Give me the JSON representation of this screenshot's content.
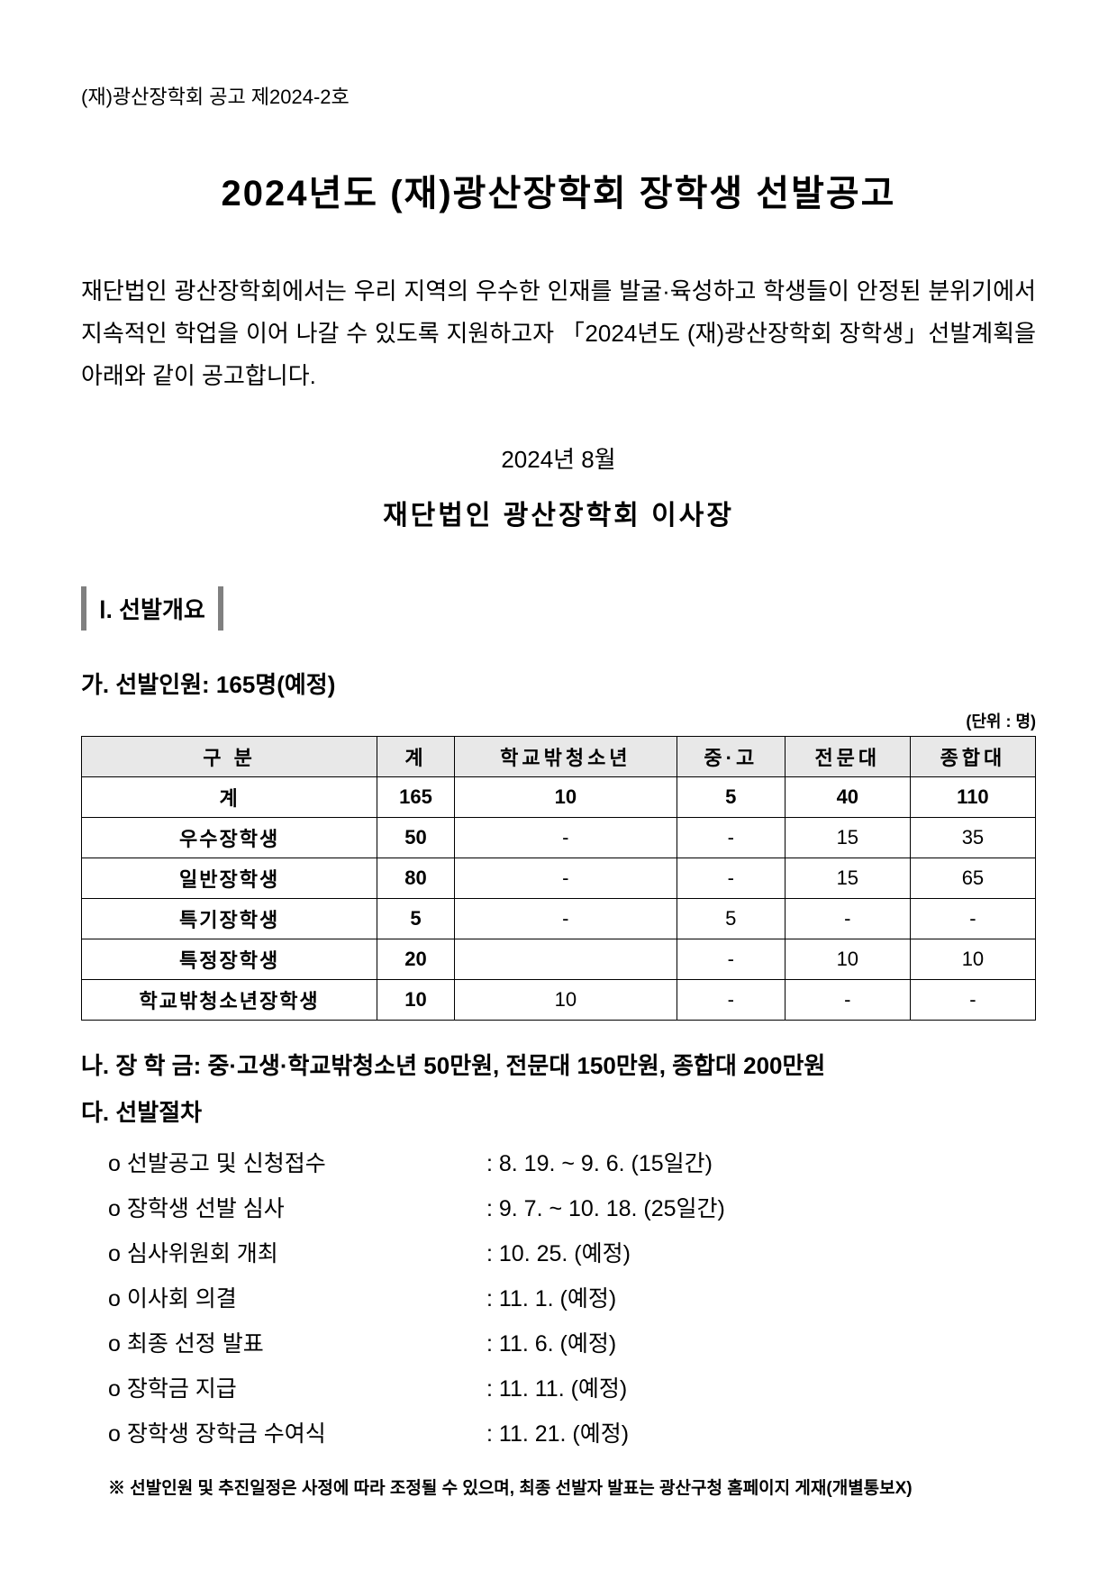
{
  "doc_number": "(재)광산장학회 공고 제2024-2호",
  "title": "2024년도 (재)광산장학회 장학생 선발공고",
  "intro": "재단법인 광산장학회에서는 우리 지역의 우수한 인재를 발굴·육성하고 학생들이 안정된 분위기에서 지속적인 학업을 이어 나갈 수 있도록 지원하고자 「2024년도 (재)광산장학회 장학생」선발계획을 아래와 같이 공고합니다.",
  "date_line": "2024년 8월",
  "signatory": "재단법인 광산장학회 이사장",
  "section1": {
    "heading": "Ⅰ. 선발개요",
    "sub_a": "가. 선발인원: 165명(예정)",
    "table_unit": "(단위 : 명)",
    "table": {
      "columns": [
        "구 분",
        "계",
        "학교밖청소년",
        "중·고",
        "전문대",
        "종합대"
      ],
      "rows": [
        {
          "label": "계",
          "values": [
            "165",
            "10",
            "5",
            "40",
            "110"
          ],
          "is_total": true
        },
        {
          "label": "우수장학생",
          "values": [
            "50",
            "-",
            "-",
            "15",
            "35"
          ],
          "is_total": false
        },
        {
          "label": "일반장학생",
          "values": [
            "80",
            "-",
            "-",
            "15",
            "65"
          ],
          "is_total": false
        },
        {
          "label": "특기장학생",
          "values": [
            "5",
            "-",
            "5",
            "-",
            "-"
          ],
          "is_total": false
        },
        {
          "label": "특정장학생",
          "values": [
            "20",
            "",
            "-",
            "10",
            "10"
          ],
          "is_total": false
        },
        {
          "label": "학교밖청소년장학생",
          "values": [
            "10",
            "10",
            "-",
            "-",
            "-"
          ],
          "is_total": false
        }
      ],
      "header_bg": "#e8e8e8",
      "border_color": "#000000"
    },
    "sub_b": "나. 장 학 금: 중·고생·학교밖청소년 50만원, 전문대 150만원, 종합대 200만원",
    "sub_c": "다. 선발절차",
    "procedures": [
      {
        "label": "o 선발공고 및 신청접수",
        "date": ": 8. 19. ~ 9. 6. (15일간)"
      },
      {
        "label": "o 장학생 선발 심사",
        "date": ": 9. 7. ~ 10. 18. (25일간)"
      },
      {
        "label": "o 심사위원회 개최",
        "date": ": 10. 25. (예정)"
      },
      {
        "label": "o 이사회 의결",
        "date": ": 11. 1. (예정)"
      },
      {
        "label": "o 최종 선정 발표",
        "date": ": 11. 6. (예정)"
      },
      {
        "label": "o 장학금 지급",
        "date": ": 11. 11. (예정)"
      },
      {
        "label": "o 장학생 장학금 수여식",
        "date": ": 11. 21. (예정)"
      }
    ],
    "footnote": "※ 선발인원 및 추진일정은 사정에 따라 조정될 수 있으며, 최종 선발자 발표는 광산구청 홈페이지 게재(개별통보X)"
  }
}
